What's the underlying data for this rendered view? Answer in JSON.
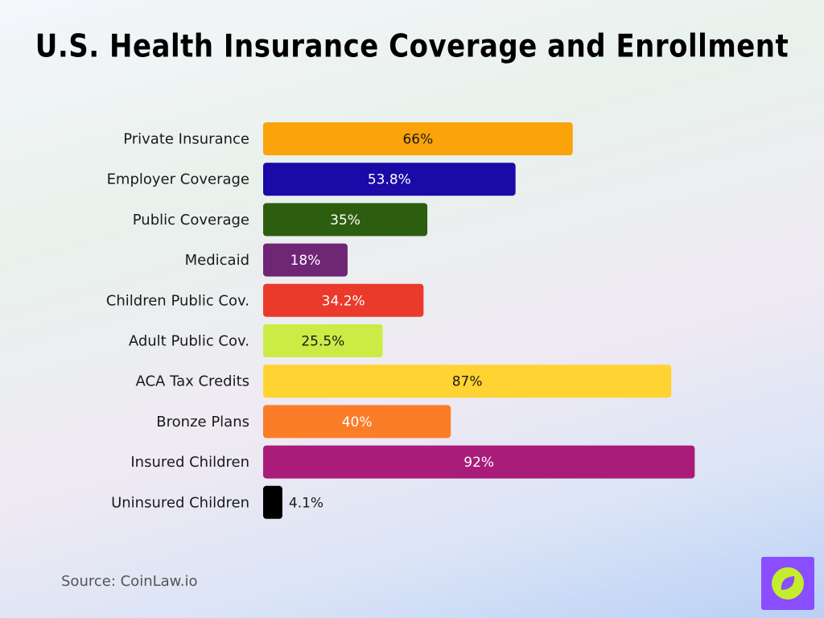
{
  "chart_data": {
    "type": "bar",
    "orientation": "horizontal",
    "title": "U.S. Health Insurance Coverage and Enrollment",
    "categories": [
      "Private Insurance",
      "Employer Coverage",
      "Public Coverage",
      "Medicaid",
      "Children Public Cov.",
      "Adult Public Cov.",
      "ACA Tax Credits",
      "Bronze Plans",
      "Insured Children",
      "Uninsured Children"
    ],
    "values": [
      66,
      53.8,
      35,
      18,
      34.2,
      25.5,
      87,
      40,
      92,
      4.1
    ],
    "value_labels": [
      "66%",
      "53.8%",
      "35%",
      "18%",
      "34.2%",
      "25.5%",
      "87%",
      "40%",
      "92%",
      "4.1%"
    ],
    "colors": [
      "#fba30a",
      "#1a0aa8",
      "#2d5e0f",
      "#6e2675",
      "#ea3a2b",
      "#cdeb45",
      "#ffd332",
      "#fb7d28",
      "#a91c7a",
      "#000000"
    ],
    "label_colors": [
      "#1a1a1a",
      "#ffffff",
      "#ffffff",
      "#ffffff",
      "#ffffff",
      "#1a1a1a",
      "#1a1a1a",
      "#ffffff",
      "#ffffff",
      "#1a1a1a"
    ],
    "xlim": [
      0,
      100
    ],
    "grid": false,
    "legend": "none"
  },
  "source": "Source: CoinLaw.io",
  "logo_icon": "compass-leaf-icon"
}
